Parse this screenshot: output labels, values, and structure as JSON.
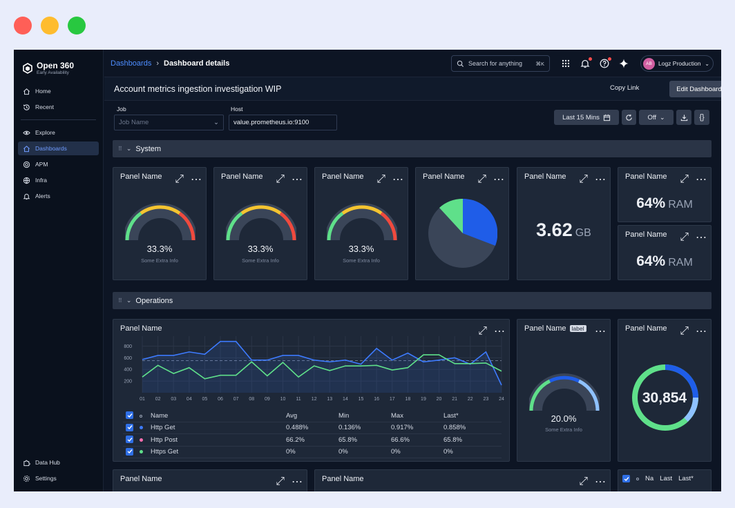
{
  "window": {
    "controls": [
      "close",
      "minimize",
      "maximize"
    ]
  },
  "brand": {
    "title": "Open 360",
    "subtitle": "Early Availability"
  },
  "sidebar": {
    "items": [
      {
        "label": "Home",
        "icon": "home-icon"
      },
      {
        "label": "Recent",
        "icon": "history-icon"
      },
      {
        "label": "Explore",
        "icon": "eye-icon"
      },
      {
        "label": "Dashboards",
        "icon": "dashboard-icon",
        "active": true
      },
      {
        "label": "APM",
        "icon": "target-icon"
      },
      {
        "label": "Infra",
        "icon": "globe-icon"
      },
      {
        "label": "Alerts",
        "icon": "bell-icon"
      }
    ],
    "bottom": [
      {
        "label": "Data Hub",
        "icon": "puzzle-icon"
      },
      {
        "label": "Settings",
        "icon": "gear-icon"
      }
    ]
  },
  "header": {
    "breadcrumb": [
      "Dashboards",
      "Dashboard details"
    ],
    "search_placeholder": "Search for anything",
    "search_shortcut": "⌘K",
    "org": {
      "initials": "AB",
      "name": "Logz Production"
    }
  },
  "dashboard": {
    "title": "Account metrics ingestion investigation WIP",
    "copy_link": "Copy Link",
    "edit": "Edit Dashboard"
  },
  "filters": {
    "job_label": "Job",
    "job_placeholder": "Job Name",
    "host_label": "Host",
    "host_value": "value.prometheus.io:9100",
    "time_range": "Last 15 Mins",
    "refresh": "Off"
  },
  "sections": {
    "system": "System",
    "operations": "Operations"
  },
  "system_panels": {
    "gauges": [
      {
        "title": "Panel Name",
        "value": "33.3%",
        "sub": "Some Extra Info",
        "fraction": 0.333
      },
      {
        "title": "Panel Name",
        "value": "33.3%",
        "sub": "Some Extra Info",
        "fraction": 0.333
      },
      {
        "title": "Panel Name",
        "value": "33.3%",
        "sub": "Some Extra Info",
        "fraction": 0.333
      }
    ],
    "pie": {
      "title": "Panel Name"
    },
    "stat": {
      "title": "Panel Name",
      "value": "3.62",
      "unit": "GB"
    },
    "ram1": {
      "title": "Panel Name",
      "value": "64%",
      "unit": "RAM"
    },
    "ram2": {
      "title": "Panel Name",
      "value": "64%",
      "unit": "RAM"
    }
  },
  "ops_panels": {
    "timeseries": {
      "title": "Panel Name",
      "legend_headers": [
        "Name",
        "Avg",
        "Min",
        "Max",
        "Last*"
      ],
      "legend_rows": [
        {
          "name": "Http Get",
          "avg": "0.488%",
          "min": "0.136%",
          "max": "0.917%",
          "last": "0.858%",
          "color": "#3d7bff"
        },
        {
          "name": "Http Post",
          "avg": "66.2%",
          "min": "65.8%",
          "max": "66.6%",
          "last": "65.8%",
          "color": "#ff6fb0"
        },
        {
          "name": "Https Get",
          "avg": "0%",
          "min": "0%",
          "max": "0%",
          "last": "0%",
          "color": "#5fe08a"
        }
      ]
    },
    "gauge2": {
      "title": "Panel Name",
      "label": "label",
      "value": "20.0%",
      "sub": "Some Extra Info",
      "fraction": 0.2
    },
    "donut": {
      "title": "Panel Name",
      "value": "30,854"
    }
  },
  "bottom_panels": {
    "left": {
      "title": "Panel Name"
    },
    "middle": {
      "title": "Panel Name"
    },
    "table_headers": [
      "Na",
      "Last",
      "Last*"
    ]
  },
  "chart_data": {
    "type": "line",
    "x": [
      "01",
      "02",
      "03",
      "04",
      "05",
      "06",
      "07",
      "08",
      "09",
      "10",
      "11",
      "12",
      "13",
      "14",
      "15",
      "16",
      "17",
      "18",
      "19",
      "20",
      "21",
      "22",
      "23",
      "24"
    ],
    "ylim": [
      0,
      900
    ],
    "y_ticks": [
      200,
      400,
      600,
      800
    ],
    "threshold": 550,
    "series": [
      {
        "values": [
          570,
          640,
          640,
          700,
          660,
          880,
          880,
          560,
          560,
          640,
          640,
          560,
          530,
          560,
          490,
          760,
          560,
          680,
          530,
          560,
          600,
          490,
          700,
          130
        ],
        "color": "#3d7bff"
      },
      {
        "values": [
          270,
          470,
          330,
          430,
          240,
          300,
          300,
          530,
          290,
          520,
          270,
          460,
          380,
          460,
          460,
          470,
          390,
          430,
          650,
          650,
          500,
          500,
          510,
          370
        ],
        "color": "#5fe08a"
      }
    ]
  },
  "colors": {
    "accent": "#4d8dff",
    "gauge_green": "#5fe08a",
    "gauge_yellow": "#f4c430",
    "gauge_red": "#f04a3e",
    "gauge_track": "#3a4558",
    "pie_blue": "#1f5de8",
    "pie_green": "#5fe08a",
    "pie_gray": "#3a4558"
  }
}
